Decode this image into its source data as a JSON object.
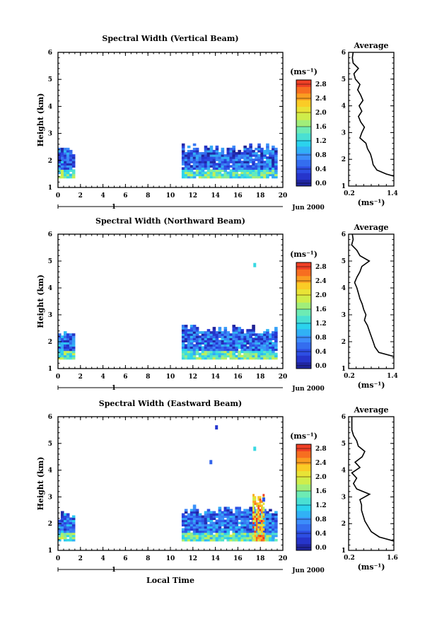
{
  "chart_data": [
    {
      "type": "heatmap",
      "title": "Spectral Width (Vertical Beam)",
      "ylabel": "Height (km)",
      "xlim": [
        0,
        20
      ],
      "ylim": [
        1,
        6
      ],
      "xticks": [
        "0",
        "2",
        "4",
        "6",
        "8",
        "10",
        "12",
        "14",
        "16",
        "18",
        "20"
      ],
      "yticks": [
        "1",
        "2",
        "3",
        "4",
        "5",
        "6"
      ],
      "day_label": "1",
      "date_label": "Jun 2000",
      "colorbar": {
        "unit": "(ms⁻¹)",
        "ticks": [
          "0.0",
          "0.4",
          "0.8",
          "1.2",
          "1.6",
          "2.0",
          "2.4",
          "2.8"
        ],
        "min": 0.0,
        "max": 3.0
      },
      "data_blocks": [
        {
          "x": [
            0,
            1.3
          ],
          "y": [
            1.35,
            2.5
          ],
          "width_ms": 0.75
        },
        {
          "x": [
            11.0,
            19.3
          ],
          "y": [
            1.35,
            2.6
          ],
          "width_ms": 0.7
        }
      ],
      "isolated_points": [],
      "average": {
        "title": "Average",
        "xlabel": "(ms⁻¹)",
        "xlim": [
          0.2,
          1.4
        ],
        "xticks": [
          "0.2",
          "1.4"
        ],
        "yticks": [
          "1",
          "2",
          "3",
          "4",
          "5",
          "6"
        ],
        "profile": [
          [
            1.37,
            1.4
          ],
          [
            1.45,
            1.2
          ],
          [
            1.6,
            0.95
          ],
          [
            1.8,
            0.85
          ],
          [
            2.0,
            0.82
          ],
          [
            2.2,
            0.78
          ],
          [
            2.4,
            0.7
          ],
          [
            2.6,
            0.66
          ],
          [
            2.8,
            0.5
          ],
          [
            3.0,
            0.55
          ],
          [
            3.2,
            0.62
          ],
          [
            3.4,
            0.52
          ],
          [
            3.6,
            0.46
          ],
          [
            3.8,
            0.55
          ],
          [
            4.0,
            0.48
          ],
          [
            4.2,
            0.58
          ],
          [
            4.4,
            0.52
          ],
          [
            4.6,
            0.44
          ],
          [
            4.8,
            0.5
          ],
          [
            5.0,
            0.38
          ],
          [
            5.2,
            0.34
          ],
          [
            5.4,
            0.46
          ],
          [
            5.6,
            0.32
          ],
          [
            5.8,
            0.3
          ],
          [
            6.0,
            0.32
          ]
        ]
      }
    },
    {
      "type": "heatmap",
      "title": "Spectral Width (Northward Beam)",
      "ylabel": "Height (km)",
      "xlim": [
        0,
        20
      ],
      "ylim": [
        1,
        6
      ],
      "xticks": [
        "0",
        "2",
        "4",
        "6",
        "8",
        "10",
        "12",
        "14",
        "16",
        "18",
        "20"
      ],
      "yticks": [
        "1",
        "2",
        "3",
        "4",
        "5",
        "6"
      ],
      "day_label": "1",
      "date_label": "Jun 2000",
      "colorbar": {
        "unit": "(ms⁻¹)",
        "ticks": [
          "0.0",
          "0.4",
          "0.8",
          "1.2",
          "1.6",
          "2.0",
          "2.4",
          "2.8"
        ],
        "min": 0.0,
        "max": 3.0
      },
      "data_blocks": [
        {
          "x": [
            0,
            1.3
          ],
          "y": [
            1.35,
            2.5
          ],
          "width_ms": 0.8
        },
        {
          "x": [
            11.0,
            19.3
          ],
          "y": [
            1.35,
            2.6
          ],
          "width_ms": 0.75
        }
      ],
      "isolated_points": [
        {
          "x": 17.5,
          "y": 4.85,
          "width_ms": 1.3
        }
      ],
      "average": {
        "title": "Average",
        "xlabel": "(ms⁻¹)",
        "xlim": [
          0.2,
          1.4
        ],
        "xticks": [
          "0.2",
          "1.4"
        ],
        "yticks": [
          "1",
          "2",
          "3",
          "4",
          "5",
          "6"
        ],
        "profile": [
          [
            1.45,
            1.4
          ],
          [
            1.6,
            1.0
          ],
          [
            1.8,
            0.9
          ],
          [
            2.0,
            0.85
          ],
          [
            2.2,
            0.8
          ],
          [
            2.4,
            0.75
          ],
          [
            2.6,
            0.7
          ],
          [
            2.8,
            0.62
          ],
          [
            3.0,
            0.66
          ],
          [
            3.2,
            0.6
          ],
          [
            3.4,
            0.56
          ],
          [
            3.6,
            0.5
          ],
          [
            3.8,
            0.46
          ],
          [
            4.0,
            0.42
          ],
          [
            4.2,
            0.36
          ],
          [
            4.4,
            0.42
          ],
          [
            4.6,
            0.5
          ],
          [
            4.8,
            0.55
          ],
          [
            5.0,
            0.75
          ],
          [
            5.2,
            0.5
          ],
          [
            5.4,
            0.42
          ],
          [
            5.6,
            0.28
          ],
          [
            5.8,
            0.32
          ],
          [
            6.0,
            0.3
          ]
        ]
      }
    },
    {
      "type": "heatmap",
      "title": "Spectral Width (Eastward Beam)",
      "ylabel": "Height (km)",
      "xlabel": "Local Time",
      "xlim": [
        0,
        20
      ],
      "ylim": [
        1,
        6
      ],
      "xticks": [
        "0",
        "2",
        "4",
        "6",
        "8",
        "10",
        "12",
        "14",
        "16",
        "18",
        "20"
      ],
      "yticks": [
        "1",
        "2",
        "3",
        "4",
        "5",
        "6"
      ],
      "day_label": "1",
      "date_label": "Jun 2000",
      "colorbar": {
        "unit": "(ms⁻¹)",
        "ticks": [
          "0.0",
          "0.4",
          "0.8",
          "1.2",
          "1.6",
          "2.0",
          "2.4",
          "2.8"
        ],
        "min": 0.0,
        "max": 3.0
      },
      "data_blocks": [
        {
          "x": [
            0,
            1.3
          ],
          "y": [
            1.35,
            2.45
          ],
          "width_ms": 0.8
        },
        {
          "x": [
            11.0,
            19.3
          ],
          "y": [
            1.35,
            2.65
          ],
          "width_ms": 0.75
        }
      ],
      "hot_column": {
        "x": [
          17.3,
          18.2
        ],
        "y": [
          1.35,
          3.2
        ],
        "width_ms": 2.8
      },
      "isolated_points": [
        {
          "x": 14.1,
          "y": 5.6,
          "width_ms": 0.3
        },
        {
          "x": 13.6,
          "y": 4.3,
          "width_ms": 0.6
        },
        {
          "x": 17.5,
          "y": 4.8,
          "width_ms": 1.3
        },
        {
          "x": 18.3,
          "y": 2.9,
          "width_ms": 0.5
        }
      ],
      "average": {
        "title": "Average",
        "xlabel": "(ms⁻¹)",
        "xlim": [
          0.2,
          1.6
        ],
        "xticks": [
          "0.2",
          "1.6"
        ],
        "yticks": [
          "1",
          "2",
          "3",
          "4",
          "5",
          "6"
        ],
        "profile": [
          [
            1.35,
            1.6
          ],
          [
            1.5,
            1.15
          ],
          [
            1.7,
            0.9
          ],
          [
            1.9,
            0.8
          ],
          [
            2.1,
            0.7
          ],
          [
            2.3,
            0.65
          ],
          [
            2.5,
            0.6
          ],
          [
            2.7,
            0.6
          ],
          [
            2.9,
            0.55
          ],
          [
            3.1,
            0.85
          ],
          [
            3.3,
            0.45
          ],
          [
            3.5,
            0.35
          ],
          [
            3.7,
            0.45
          ],
          [
            3.9,
            0.3
          ],
          [
            4.1,
            0.55
          ],
          [
            4.3,
            0.4
          ],
          [
            4.5,
            0.62
          ],
          [
            4.7,
            0.7
          ],
          [
            4.9,
            0.5
          ],
          [
            5.1,
            0.45
          ],
          [
            5.3,
            0.35
          ],
          [
            5.5,
            0.3
          ],
          [
            5.7,
            0.3
          ],
          [
            6.0,
            0.3
          ]
        ]
      }
    }
  ]
}
